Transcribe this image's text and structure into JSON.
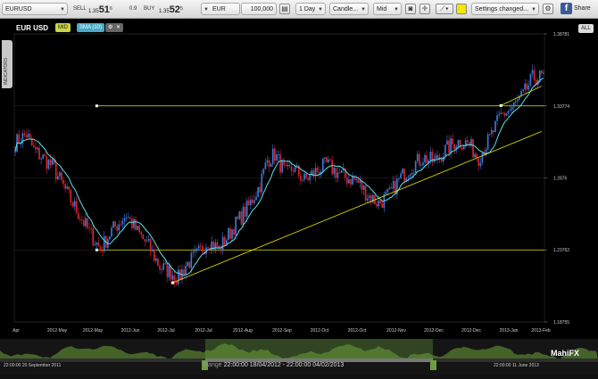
{
  "toolbar": {
    "symbol": "EURUSD",
    "sell_label": "SELL",
    "sell_price_prefix": "1.35",
    "sell_price_big": "51",
    "sell_price_sup": "6",
    "spread": "0.9",
    "buy_label": "BUY",
    "buy_price_prefix": "1.35",
    "buy_price_big": "52",
    "buy_price_sup": "5",
    "currency": "EUR",
    "amount": "100,000",
    "timeframe": "1 Day",
    "chart_type": "Candle...",
    "price_type": "Mid",
    "settings": "Settings changed...",
    "share_label": "Share"
  },
  "legend": {
    "symbol": "EUR USD",
    "mid_badge": "MID",
    "sma_badge": "SMA (10)"
  },
  "side_tab": "INDICATORS",
  "all_badge": "ALL",
  "nav": {
    "start": "22:00:00 20 September 2011",
    "end": "22:00:00 11 June 2013",
    "range_label": "Range",
    "range_value": "22:00:00 18/04/2012 - 22:00:00 04/02/2013"
  },
  "logo": "MahiFX",
  "colors": {
    "bull": "#3a78d8",
    "bear": "#d8232a",
    "sma": "#59e0e8",
    "trend": "#e8e800"
  },
  "chart_data": {
    "type": "candlestick",
    "yticks": [
      "1.38781",
      "1.33774",
      "1.2876",
      "1.23762",
      "1.18755"
    ],
    "xticks": [
      "Apr",
      "2012-May",
      "2012-May",
      "2012-Jun",
      "2012-Jul",
      "2012-Jul",
      "2012-Aug",
      "2012-Sep",
      "2012-Oct",
      "2012-Oct",
      "2012-Nov",
      "2012-Dec",
      "2012-Dec",
      "2013-Jan",
      "2013-Feb"
    ],
    "ylim": [
      1.18755,
      1.38781
    ],
    "close_anchors": [
      [
        0,
        1.312
      ],
      [
        6,
        1.318
      ],
      [
        10,
        1.307
      ],
      [
        20,
        1.296
      ],
      [
        30,
        1.272
      ],
      [
        40,
        1.25
      ],
      [
        46,
        1.238
      ],
      [
        52,
        1.251
      ],
      [
        60,
        1.262
      ],
      [
        66,
        1.25
      ],
      [
        72,
        1.24
      ],
      [
        78,
        1.226
      ],
      [
        84,
        1.222
      ],
      [
        88,
        1.218
      ],
      [
        92,
        1.227
      ],
      [
        98,
        1.234
      ],
      [
        104,
        1.244
      ],
      [
        110,
        1.238
      ],
      [
        118,
        1.254
      ],
      [
        126,
        1.268
      ],
      [
        132,
        1.283
      ],
      [
        136,
        1.3
      ],
      [
        140,
        1.304
      ],
      [
        146,
        1.29
      ],
      [
        150,
        1.295
      ],
      [
        156,
        1.286
      ],
      [
        162,
        1.292
      ],
      [
        168,
        1.297
      ],
      [
        172,
        1.293
      ],
      [
        178,
        1.288
      ],
      [
        184,
        1.286
      ],
      [
        190,
        1.276
      ],
      [
        196,
        1.27
      ],
      [
        202,
        1.276
      ],
      [
        208,
        1.288
      ],
      [
        214,
        1.296
      ],
      [
        220,
        1.302
      ],
      [
        226,
        1.299
      ],
      [
        232,
        1.307
      ],
      [
        238,
        1.313
      ],
      [
        244,
        1.312
      ],
      [
        250,
        1.302
      ],
      [
        256,
        1.315
      ],
      [
        262,
        1.331
      ],
      [
        268,
        1.336
      ],
      [
        274,
        1.345
      ],
      [
        279,
        1.357
      ],
      [
        284,
        1.358
      ]
    ],
    "horizontal_lines": [
      1.23762,
      1.33774
    ],
    "trend_lines": [
      {
        "x1": 85,
        "y1": 1.2148,
        "x2": 284,
        "y2": 1.32
      },
      {
        "x1": 262,
        "y1": 1.338,
        "x2": 284,
        "y2": 1.3515
      }
    ]
  }
}
